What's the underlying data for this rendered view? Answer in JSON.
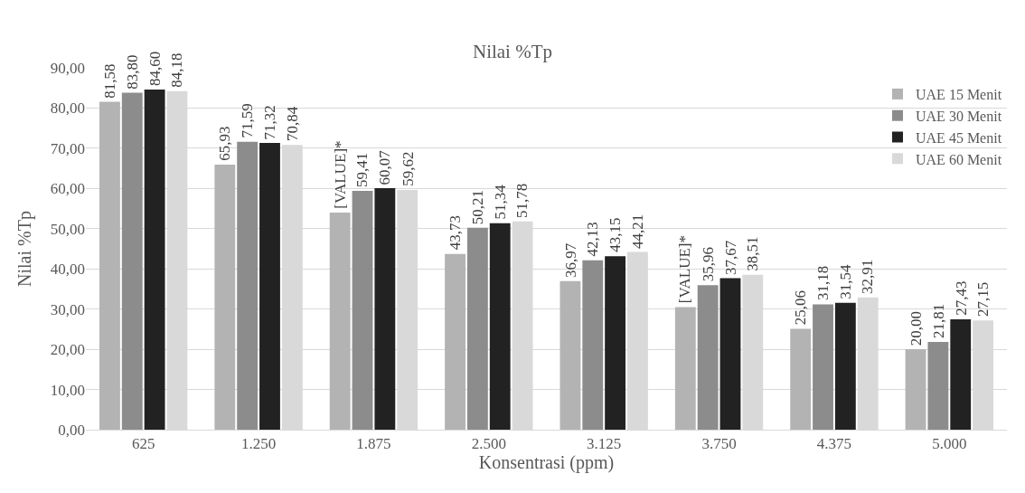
{
  "chart_data": {
    "type": "bar",
    "title": "Nilai %Tp",
    "xlabel": "Konsentrasi (ppm)",
    "ylabel": "Nilai %Tp",
    "categories": [
      "625",
      "1.250",
      "1.875",
      "2.500",
      "3.125",
      "3.750",
      "4.375",
      "5.000"
    ],
    "series": [
      {
        "name": "UAE 15 Menit",
        "color": "#b3b3b3",
        "values": [
          81.58,
          65.93,
          54.0,
          43.73,
          36.97,
          30.5,
          25.06,
          20.0
        ],
        "value_labels": [
          "81,58",
          "65,93",
          "[VALUE]*",
          "43,73",
          "36,97",
          "[VALUE]*",
          "25,06",
          "20,00"
        ]
      },
      {
        "name": "UAE 30 Menit",
        "color": "#8c8c8c",
        "values": [
          83.8,
          71.59,
          59.41,
          50.21,
          42.13,
          35.96,
          31.18,
          21.81
        ],
        "value_labels": [
          "83,80",
          "71,59",
          "59,41",
          "50,21",
          "42,13",
          "35,96",
          "31,18",
          "21,81"
        ]
      },
      {
        "name": "UAE 45 Menit",
        "color": "#222222",
        "values": [
          84.6,
          71.32,
          60.07,
          51.34,
          43.15,
          37.67,
          31.54,
          27.43
        ],
        "value_labels": [
          "84,60",
          "71,32",
          "60,07",
          "51,34",
          "43,15",
          "37,67",
          "31,54",
          "27,43"
        ]
      },
      {
        "name": "UAE 60 Menit",
        "color": "#d9d9d9",
        "values": [
          84.18,
          70.84,
          59.62,
          51.78,
          44.21,
          38.51,
          32.91,
          27.15
        ],
        "value_labels": [
          "84,18",
          "70,84",
          "59,62",
          "51,78",
          "44,21",
          "38,51",
          "32,91",
          "27,15"
        ]
      }
    ],
    "ylim": [
      0,
      90
    ],
    "yticks": [
      {
        "value": 0,
        "label": "0,00"
      },
      {
        "value": 10,
        "label": "10,00"
      },
      {
        "value": 20,
        "label": "20,00"
      },
      {
        "value": 30,
        "label": "30,00"
      },
      {
        "value": 40,
        "label": "40,00"
      },
      {
        "value": 50,
        "label": "50,00"
      },
      {
        "value": 60,
        "label": "60,00"
      },
      {
        "value": 70,
        "label": "70,00"
      },
      {
        "value": 80,
        "label": "80,00"
      },
      {
        "value": 90,
        "label": "90,00"
      }
    ],
    "grid": "y",
    "legend": "top right"
  }
}
